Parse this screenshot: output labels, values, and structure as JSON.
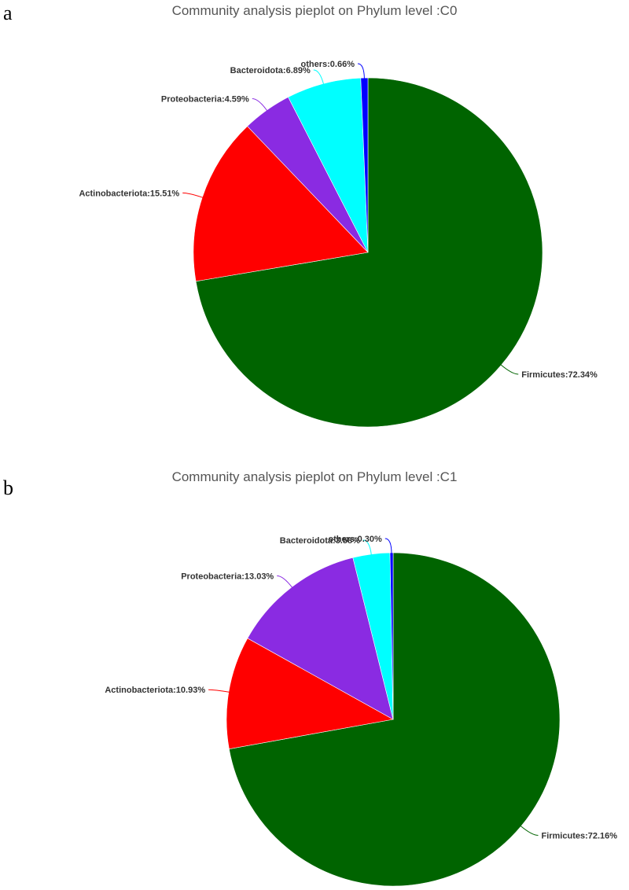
{
  "panels": [
    {
      "letter": "a",
      "title": "Community analysis pieplot on Phylum level :C0"
    },
    {
      "letter": "b",
      "title": "Community analysis pieplot on Phylum level :C1"
    }
  ],
  "chart_data": [
    {
      "type": "pie",
      "title": "Community analysis pieplot on Phylum level :C0",
      "slices": [
        {
          "name": "Firmicutes",
          "value": 72.34,
          "label": "Firmicutes:72.34%",
          "color": "#006400"
        },
        {
          "name": "Actinobacteriota",
          "value": 15.51,
          "label": "Actinobacteriota:15.51%",
          "color": "#ff0000"
        },
        {
          "name": "Proteobacteria",
          "value": 4.59,
          "label": "Proteobacteria:4.59%",
          "color": "#8a2be2"
        },
        {
          "name": "Bacteroidota",
          "value": 6.89,
          "label": "Bacteroidota:6.89%",
          "color": "#00ffff"
        },
        {
          "name": "others",
          "value": 0.66,
          "label": "others:0.66%",
          "color": "#0000ff"
        }
      ]
    },
    {
      "type": "pie",
      "title": "Community analysis pieplot on Phylum level :C1",
      "slices": [
        {
          "name": "Firmicutes",
          "value": 72.16,
          "label": "Firmicutes:72.16%",
          "color": "#006400"
        },
        {
          "name": "Actinobacteriota",
          "value": 10.93,
          "label": "Actinobacteriota:10.93%",
          "color": "#ff0000"
        },
        {
          "name": "Proteobacteria",
          "value": 13.03,
          "label": "Proteobacteria:13.03%",
          "color": "#8a2be2"
        },
        {
          "name": "Bacteroidota",
          "value": 3.58,
          "label": "Bacteroidota:3.58%",
          "color": "#00ffff"
        },
        {
          "name": "others",
          "value": 0.3,
          "label": "others:0.30%",
          "color": "#0000ff"
        }
      ]
    }
  ]
}
